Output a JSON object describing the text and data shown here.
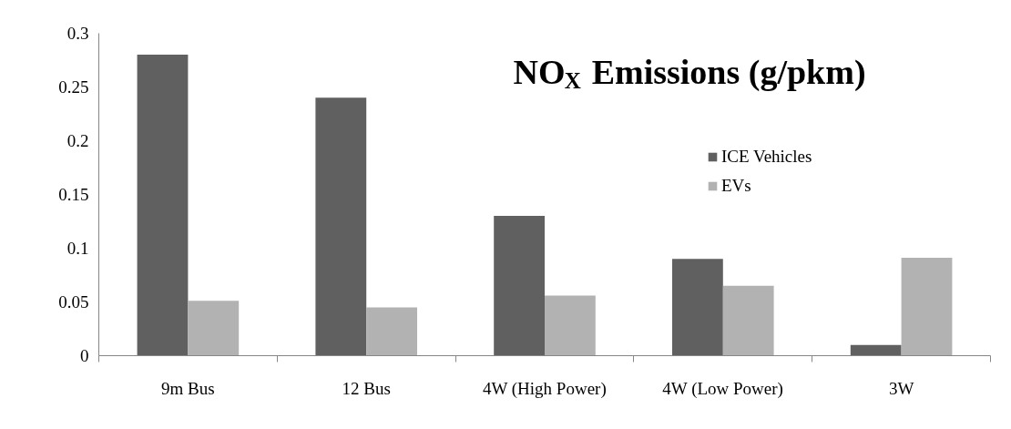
{
  "chart_data": {
    "type": "bar",
    "title": "NO$_{X}$ Emissions (g/pkm)",
    "categories": [
      "9m Bus",
      "12 Bus",
      "4W (High Power)",
      "4W (Low Power)",
      "3W"
    ],
    "series": [
      {
        "name": "ICE Vehicles",
        "color": "#606060",
        "values": [
          0.28,
          0.24,
          0.13,
          0.09,
          0.01
        ]
      },
      {
        "name": "EVs",
        "color": "#b2b2b2",
        "values": [
          0.051,
          0.045,
          0.056,
          0.065,
          0.091
        ]
      }
    ],
    "ylim": [
      0,
      0.3
    ],
    "yticks": [
      0,
      0.05,
      0.1,
      0.15,
      0.2,
      0.25,
      0.3
    ],
    "grid": false,
    "legend": "top right"
  }
}
